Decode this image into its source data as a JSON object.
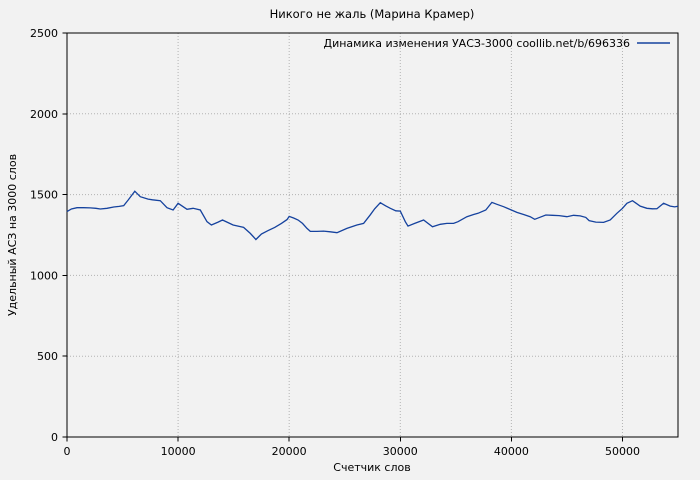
{
  "page": {
    "background": "#f2f2f2"
  },
  "chart_data": {
    "type": "line",
    "title": "Никого не жаль (Марина Крамер)",
    "legend_label": "Динамика изменения УАСЗ-3000 coollib.net/b/696336",
    "xlabel": "Счетчик слов",
    "ylabel": "Удельный АСЗ на 3000 слов",
    "xlim": [
      0,
      55000
    ],
    "ylim": [
      0,
      2500
    ],
    "xticks": [
      0,
      10000,
      20000,
      30000,
      40000,
      50000
    ],
    "yticks": [
      0,
      500,
      1000,
      1500,
      2000,
      2500
    ],
    "grid": true,
    "grid_style": "dotted",
    "legend_position": "top-right-inside",
    "line_color": "#15429e",
    "grid_color": "#b3b3b3",
    "border_color": "#000000",
    "series": [
      {
        "name": "Динамика изменения УАСЗ-3000 coollib.net/b/696336",
        "points": [
          [
            0,
            1395
          ],
          [
            400,
            1411
          ],
          [
            900,
            1419
          ],
          [
            1500,
            1419
          ],
          [
            2100,
            1418
          ],
          [
            2600,
            1415
          ],
          [
            3000,
            1411
          ],
          [
            3600,
            1415
          ],
          [
            4200,
            1423
          ],
          [
            4700,
            1427
          ],
          [
            5100,
            1432
          ],
          [
            5500,
            1466
          ],
          [
            6100,
            1521
          ],
          [
            6600,
            1487
          ],
          [
            7300,
            1472
          ],
          [
            7700,
            1468
          ],
          [
            8400,
            1462
          ],
          [
            9000,
            1419
          ],
          [
            9550,
            1405
          ],
          [
            10000,
            1446
          ],
          [
            10800,
            1409
          ],
          [
            11350,
            1415
          ],
          [
            12000,
            1405
          ],
          [
            12600,
            1332
          ],
          [
            13000,
            1312
          ],
          [
            13600,
            1330
          ],
          [
            14000,
            1343
          ],
          [
            14950,
            1312
          ],
          [
            15500,
            1303
          ],
          [
            15900,
            1297
          ],
          [
            16500,
            1260
          ],
          [
            17000,
            1222
          ],
          [
            17500,
            1256
          ],
          [
            18100,
            1277
          ],
          [
            18700,
            1297
          ],
          [
            19300,
            1322
          ],
          [
            19800,
            1345
          ],
          [
            20000,
            1365
          ],
          [
            20400,
            1355
          ],
          [
            20800,
            1343
          ],
          [
            21200,
            1322
          ],
          [
            21600,
            1291
          ],
          [
            21900,
            1272
          ],
          [
            22500,
            1272
          ],
          [
            23100,
            1274
          ],
          [
            23700,
            1270
          ],
          [
            24300,
            1264
          ],
          [
            25200,
            1291
          ],
          [
            26100,
            1312
          ],
          [
            26700,
            1322
          ],
          [
            27300,
            1375
          ],
          [
            27700,
            1412
          ],
          [
            28200,
            1450
          ],
          [
            28700,
            1430
          ],
          [
            29100,
            1415
          ],
          [
            29600,
            1400
          ],
          [
            30000,
            1398
          ],
          [
            30450,
            1332
          ],
          [
            30700,
            1305
          ],
          [
            31300,
            1322
          ],
          [
            32100,
            1343
          ],
          [
            32900,
            1301
          ],
          [
            33600,
            1316
          ],
          [
            34200,
            1322
          ],
          [
            34800,
            1322
          ],
          [
            35200,
            1332
          ],
          [
            36000,
            1363
          ],
          [
            36600,
            1377
          ],
          [
            37000,
            1384
          ],
          [
            37700,
            1405
          ],
          [
            38250,
            1452
          ],
          [
            38700,
            1440
          ],
          [
            39300,
            1425
          ],
          [
            40000,
            1405
          ],
          [
            40500,
            1390
          ],
          [
            41100,
            1377
          ],
          [
            41700,
            1363
          ],
          [
            42100,
            1347
          ],
          [
            42600,
            1360
          ],
          [
            43100,
            1374
          ],
          [
            43700,
            1372
          ],
          [
            44300,
            1370
          ],
          [
            45000,
            1363
          ],
          [
            45600,
            1372
          ],
          [
            46200,
            1368
          ],
          [
            46700,
            1359
          ],
          [
            47000,
            1339
          ],
          [
            47600,
            1330
          ],
          [
            48300,
            1328
          ],
          [
            48900,
            1343
          ],
          [
            49500,
            1384
          ],
          [
            50000,
            1415
          ],
          [
            50400,
            1446
          ],
          [
            50900,
            1462
          ],
          [
            51600,
            1429
          ],
          [
            52200,
            1415
          ],
          [
            52700,
            1412
          ],
          [
            53100,
            1413
          ],
          [
            53700,
            1446
          ],
          [
            54300,
            1429
          ],
          [
            54700,
            1424
          ],
          [
            55000,
            1428
          ]
        ]
      }
    ]
  }
}
